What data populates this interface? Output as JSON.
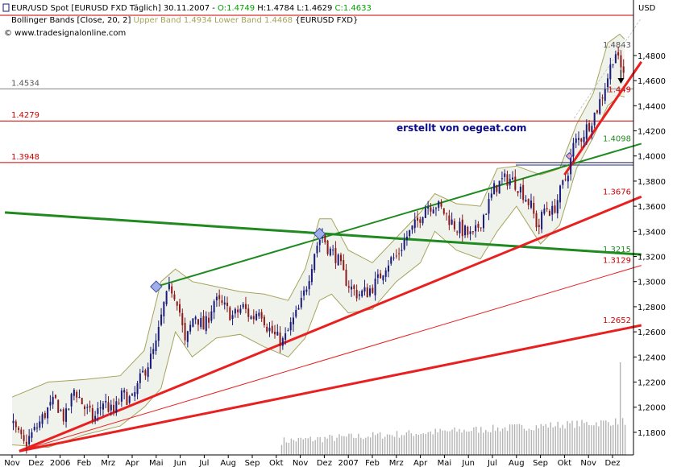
{
  "header": {
    "symbol": "EUR/USD Spot [EURUSD FXD  Täglich] 30.11.2007 - ",
    "open": "O:1.4749",
    "high": "H:1.4784",
    "low": "L:1.4629",
    "close": "C:1.4633",
    "bollinger_name": "Bollinger Bands [Close, 20, 2] ",
    "bollinger_values": "Upper Band 1.4934 Lower Band 1.4468",
    "bollinger_symbol": " {EURUSD FXD}",
    "site": "© www.tradesignalonline.com"
  },
  "annotation": "erstellt von oegeat.com",
  "colors": {
    "candle_up": "#1a1a7a",
    "candle_down": "#8b1a1a",
    "bollinger": "#a6a35a",
    "bollinger_fill": "#f0f3ec",
    "green_line": "#1f8a1f",
    "red_line": "#e82020",
    "h_red": "#cc0000",
    "h_gray": "#808080",
    "h_navy": "#1f2f6f"
  },
  "chart_data": {
    "type": "candlestick",
    "unit": "USD",
    "ylim": [
      1.162,
      1.512
    ],
    "y_ticks": [
      {
        "value": 1.18,
        "label": "1,1800"
      },
      {
        "value": 1.2,
        "label": "1,2000"
      },
      {
        "value": 1.22,
        "label": "1,2200"
      },
      {
        "value": 1.24,
        "label": "1,2400"
      },
      {
        "value": 1.26,
        "label": "1,2600"
      },
      {
        "value": 1.28,
        "label": "1,2800"
      },
      {
        "value": 1.3,
        "label": "1,3000"
      },
      {
        "value": 1.32,
        "label": "1,3200"
      },
      {
        "value": 1.34,
        "label": "1,3400"
      },
      {
        "value": 1.36,
        "label": "1,3600"
      },
      {
        "value": 1.38,
        "label": "1,3800"
      },
      {
        "value": 1.4,
        "label": "1,4000"
      },
      {
        "value": 1.42,
        "label": "1,4200"
      },
      {
        "value": 1.44,
        "label": "1,4400"
      },
      {
        "value": 1.46,
        "label": "1,4600"
      },
      {
        "value": 1.48,
        "label": "1,4800"
      }
    ],
    "months": [
      "Nov",
      "Dez",
      "2006",
      "Feb",
      "Mrz",
      "Apr",
      "Mai",
      "Jun",
      "Jul",
      "Aug",
      "Sep",
      "Okt",
      "Nov",
      "Dez",
      "2007",
      "Feb",
      "Mrz",
      "Apr",
      "Mai",
      "Jun",
      "Jul",
      "Aug",
      "Sep",
      "Okt",
      "Nov",
      "Dez"
    ],
    "price_path": [
      [
        0,
        1.186
      ],
      [
        0.5,
        1.17
      ],
      [
        1.0,
        1.183
      ],
      [
        1.4,
        1.196
      ],
      [
        1.8,
        1.205
      ],
      [
        2.2,
        1.19
      ],
      [
        2.6,
        1.215
      ],
      [
        3.0,
        1.2
      ],
      [
        3.4,
        1.19
      ],
      [
        3.8,
        1.205
      ],
      [
        4.2,
        1.195
      ],
      [
        4.6,
        1.21
      ],
      [
        5.0,
        1.205
      ],
      [
        5.4,
        1.225
      ],
      [
        5.8,
        1.24
      ],
      [
        6.0,
        1.25
      ],
      [
        6.3,
        1.28
      ],
      [
        6.6,
        1.296
      ],
      [
        6.9,
        1.285
      ],
      [
        7.2,
        1.25
      ],
      [
        7.6,
        1.275
      ],
      [
        8.0,
        1.262
      ],
      [
        8.4,
        1.285
      ],
      [
        8.8,
        1.28
      ],
      [
        9.2,
        1.272
      ],
      [
        9.6,
        1.28
      ],
      [
        10.0,
        1.27
      ],
      [
        10.3,
        1.28
      ],
      [
        10.6,
        1.265
      ],
      [
        11.0,
        1.255
      ],
      [
        11.3,
        1.252
      ],
      [
        11.6,
        1.265
      ],
      [
        12.0,
        1.28
      ],
      [
        12.3,
        1.3
      ],
      [
        12.6,
        1.325
      ],
      [
        12.9,
        1.338
      ],
      [
        13.2,
        1.325
      ],
      [
        13.5,
        1.32
      ],
      [
        13.8,
        1.305
      ],
      [
        14.1,
        1.295
      ],
      [
        14.4,
        1.29
      ],
      [
        14.8,
        1.292
      ],
      [
        15.2,
        1.3
      ],
      [
        15.6,
        1.315
      ],
      [
        16.0,
        1.32
      ],
      [
        16.4,
        1.335
      ],
      [
        16.8,
        1.345
      ],
      [
        17.2,
        1.36
      ],
      [
        17.6,
        1.362
      ],
      [
        18.0,
        1.355
      ],
      [
        18.4,
        1.345
      ],
      [
        18.8,
        1.34
      ],
      [
        19.2,
        1.335
      ],
      [
        19.5,
        1.348
      ],
      [
        19.8,
        1.36
      ],
      [
        20.1,
        1.375
      ],
      [
        20.4,
        1.38
      ],
      [
        20.7,
        1.382
      ],
      [
        21.0,
        1.378
      ],
      [
        21.3,
        1.37
      ],
      [
        21.6,
        1.36
      ],
      [
        21.9,
        1.342
      ],
      [
        22.2,
        1.36
      ],
      [
        22.5,
        1.355
      ],
      [
        22.8,
        1.37
      ],
      [
        23.1,
        1.385
      ],
      [
        23.4,
        1.41
      ],
      [
        23.7,
        1.415
      ],
      [
        24.0,
        1.425
      ],
      [
        24.3,
        1.435
      ],
      [
        24.6,
        1.45
      ],
      [
        24.9,
        1.47
      ],
      [
        25.1,
        1.485
      ],
      [
        25.3,
        1.47
      ],
      [
        25.5,
        1.468
      ]
    ],
    "bollinger_upper": [
      [
        0,
        1.208
      ],
      [
        1.5,
        1.22
      ],
      [
        3,
        1.222
      ],
      [
        4.5,
        1.225
      ],
      [
        5.5,
        1.245
      ],
      [
        6.2,
        1.3
      ],
      [
        6.8,
        1.31
      ],
      [
        7.5,
        1.3
      ],
      [
        8.5,
        1.296
      ],
      [
        9.5,
        1.292
      ],
      [
        10.5,
        1.29
      ],
      [
        11.5,
        1.285
      ],
      [
        12.2,
        1.31
      ],
      [
        12.8,
        1.35
      ],
      [
        13.3,
        1.35
      ],
      [
        14.0,
        1.325
      ],
      [
        15.0,
        1.315
      ],
      [
        16.0,
        1.335
      ],
      [
        17.0,
        1.355
      ],
      [
        17.6,
        1.37
      ],
      [
        18.5,
        1.362
      ],
      [
        19.5,
        1.36
      ],
      [
        20.2,
        1.39
      ],
      [
        21.0,
        1.392
      ],
      [
        22.0,
        1.385
      ],
      [
        22.8,
        1.39
      ],
      [
        23.5,
        1.425
      ],
      [
        24.2,
        1.45
      ],
      [
        24.8,
        1.49
      ],
      [
        25.3,
        1.497
      ],
      [
        25.5,
        1.493
      ]
    ],
    "bollinger_lower": [
      [
        0,
        1.17
      ],
      [
        1.5,
        1.168
      ],
      [
        3,
        1.178
      ],
      [
        4.5,
        1.185
      ],
      [
        5.5,
        1.2
      ],
      [
        6.2,
        1.215
      ],
      [
        6.8,
        1.26
      ],
      [
        7.5,
        1.24
      ],
      [
        8.5,
        1.255
      ],
      [
        9.5,
        1.258
      ],
      [
        10.5,
        1.248
      ],
      [
        11.5,
        1.24
      ],
      [
        12.2,
        1.255
      ],
      [
        12.8,
        1.285
      ],
      [
        13.3,
        1.29
      ],
      [
        14.0,
        1.275
      ],
      [
        15.0,
        1.278
      ],
      [
        16.0,
        1.3
      ],
      [
        17.0,
        1.315
      ],
      [
        17.6,
        1.34
      ],
      [
        18.5,
        1.325
      ],
      [
        19.5,
        1.318
      ],
      [
        20.2,
        1.34
      ],
      [
        21.0,
        1.36
      ],
      [
        22.0,
        1.33
      ],
      [
        22.8,
        1.345
      ],
      [
        23.5,
        1.39
      ],
      [
        24.2,
        1.415
      ],
      [
        24.8,
        1.44
      ],
      [
        25.3,
        1.448
      ],
      [
        25.5,
        1.447
      ]
    ],
    "price_levels": [
      {
        "label": "1.4534",
        "value": 1.4534,
        "style": "gray",
        "side": "left"
      },
      {
        "label": "1.4279",
        "value": 1.4279,
        "style": "red",
        "side": "left"
      },
      {
        "label": "1.3948",
        "value": 1.3948,
        "style": "red",
        "side": "left"
      },
      {
        "label": "1.4843",
        "value": 1.4843,
        "style": "gray",
        "side": "right"
      },
      {
        "label": "1.449",
        "value": 1.449,
        "style": "red",
        "side": "right"
      },
      {
        "label": "1.4098",
        "value": 1.4098,
        "style": "green",
        "side": "right"
      },
      {
        "label": "1.3676",
        "value": 1.3676,
        "style": "red",
        "side": "right"
      },
      {
        "label": "1.3215",
        "value": 1.3215,
        "style": "green",
        "side": "right"
      },
      {
        "label": "1.3129",
        "value": 1.3129,
        "style": "red",
        "side": "right"
      },
      {
        "label": "1.2652",
        "value": 1.2652,
        "style": "red",
        "side": "right"
      }
    ],
    "trendlines": [
      {
        "color": "green",
        "width": 3,
        "from": [
          -0.3,
          1.355
        ],
        "to": [
          26.2,
          1.3215
        ]
      },
      {
        "color": "green",
        "width": 2,
        "from": [
          6.0,
          1.296
        ],
        "to": [
          26.2,
          1.4098
        ]
      },
      {
        "color": "red",
        "width": 3,
        "from": [
          0.3,
          1.165
        ],
        "to": [
          26.2,
          1.3676
        ]
      },
      {
        "color": "red",
        "width": 3,
        "from": [
          0.3,
          1.165
        ],
        "to": [
          26.2,
          1.2652
        ]
      },
      {
        "color": "red",
        "width": 1,
        "from": [
          0.3,
          1.165
        ],
        "to": [
          26.2,
          1.3129
        ]
      },
      {
        "color": "red",
        "width": 3,
        "from": [
          23.0,
          1.385
        ],
        "to": [
          26.2,
          1.475
        ]
      }
    ],
    "markers": [
      [
        6.0,
        1.296
      ],
      [
        12.8,
        1.338
      ],
      [
        23.2,
        1.4
      ]
    ]
  }
}
